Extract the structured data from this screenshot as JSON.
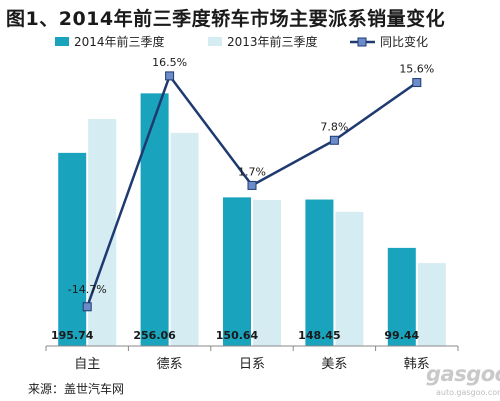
{
  "title": "图1、2014年前三季度轿车市场主要派系销量变化",
  "source": "来源：盖世汽车网",
  "watermark": "gasgoo",
  "watermark_sub": "auto.gasgoo.com",
  "colors": {
    "bar2014": "#1aa3bd",
    "bar2013": "#d4ecf2",
    "line": "#1f3a70",
    "marker": "#6b8cc9"
  },
  "chart_data": {
    "type": "bar",
    "categories": [
      "自主",
      "德系",
      "日系",
      "美系",
      "韩系"
    ],
    "series": [
      {
        "name": "2014年前三季度",
        "type": "bar",
        "values": [
          195.74,
          256.06,
          150.64,
          148.45,
          99.44
        ]
      },
      {
        "name": "2013年前三季度",
        "type": "bar",
        "values": [
          230,
          216,
          148,
          136,
          84
        ]
      },
      {
        "name": "同比变化",
        "type": "line",
        "axis": "secondary",
        "values": [
          -14.7,
          16.5,
          1.7,
          7.8,
          15.6
        ]
      }
    ],
    "bar_labels": [
      "195.74",
      "256.06",
      "150.64",
      "148.45",
      "99.44"
    ],
    "line_labels": [
      "-14.7%",
      "16.5%",
      "1.7%",
      "7.8%",
      "15.6%"
    ],
    "ylim": [
      0,
      300
    ],
    "ylim_secondary": [
      -20,
      20
    ],
    "legend_position": "top"
  }
}
